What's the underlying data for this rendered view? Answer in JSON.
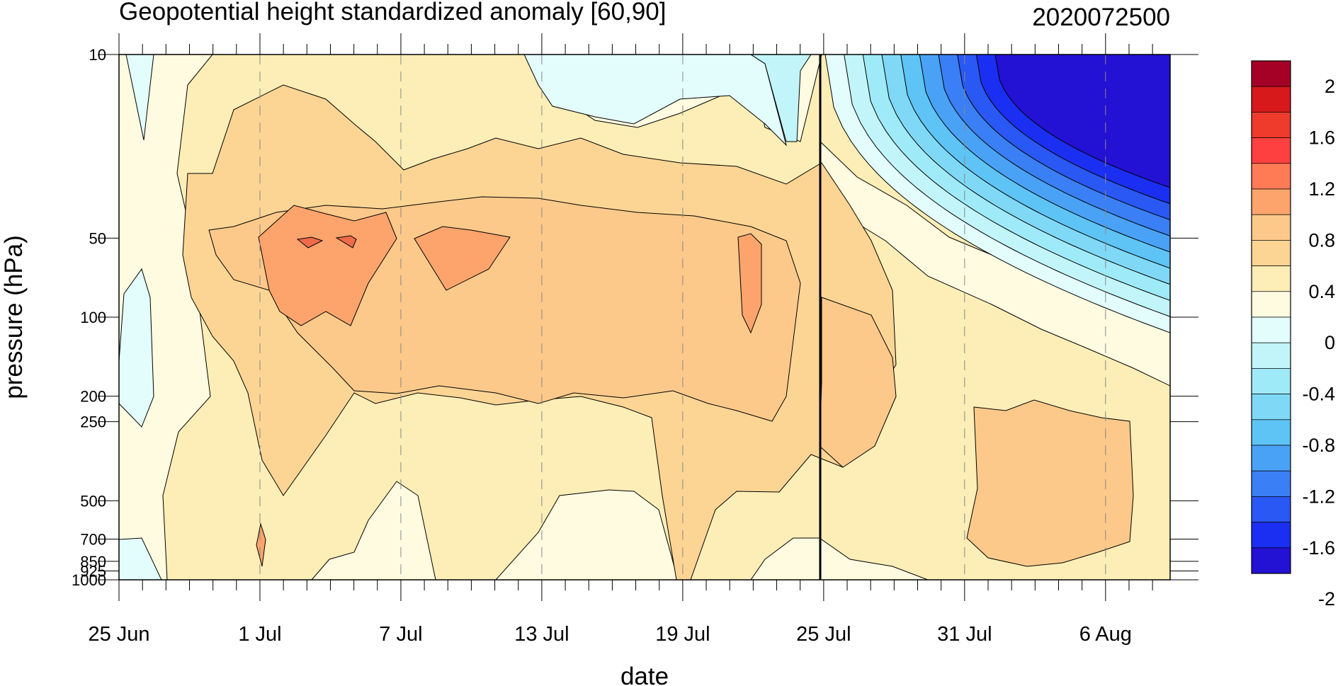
{
  "chart_data": {
    "type": "heatmap",
    "title": "Geopotential height standardized anomaly [60,90]",
    "date_stamp": "2020072500",
    "xlabel": "date",
    "ylabel": "pressure (hPa)",
    "x_ticks": [
      "25 Jun",
      "1 Jul",
      "7 Jul",
      "13 Jul",
      "19 Jul",
      "25 Jul",
      "31 Jul",
      "6 Aug"
    ],
    "x_range_days": [
      0,
      45
    ],
    "current_day_marker": "25 Jul",
    "y_ticks": [
      "10",
      "50",
      "100",
      "200",
      "250",
      "500",
      "700",
      "850",
      "925",
      "1000"
    ],
    "y_scale": "log",
    "y_range": [
      1000,
      10
    ],
    "colorbar": {
      "labels": [
        "2",
        "1.6",
        "1.2",
        "0.8",
        "0.4",
        "0",
        "-0.4",
        "-0.8",
        "-1.2",
        "-1.6",
        "-2"
      ],
      "colors": [
        "#a50026",
        "#d7191c",
        "#ef3b2c",
        "#ff4040",
        "#ff7b56",
        "#fda46d",
        "#fcc98a",
        "#fcd595",
        "#fceeb6",
        "#fffbe1",
        "#e3fdfd",
        "#c2f5f9",
        "#9feaf8",
        "#7fd9f6",
        "#5ec3f5",
        "#4aa2f6",
        "#3a7ff5",
        "#2a58f5",
        "#1b2ff2",
        "#2311d4"
      ]
    },
    "levels": [
      {
        "name": "strong-neg",
        "value": -2.0,
        "color": "#2311d4"
      },
      {
        "name": "neg-1.8",
        "value": -1.8,
        "color": "#1b2ff2"
      },
      {
        "name": "neg-1.6",
        "value": -1.6,
        "color": "#2a58f5"
      },
      {
        "name": "neg-1.4",
        "value": -1.4,
        "color": "#3a7ff5"
      },
      {
        "name": "neg-1.2",
        "value": -1.2,
        "color": "#4aa2f6"
      },
      {
        "name": "neg-1.0",
        "value": -1.0,
        "color": "#5ec3f5"
      },
      {
        "name": "neg-0.8",
        "value": -0.8,
        "color": "#7fd9f6"
      },
      {
        "name": "neg-0.6",
        "value": -0.6,
        "color": "#9feaf8"
      },
      {
        "name": "neg-0.4",
        "value": -0.4,
        "color": "#c2f5f9"
      },
      {
        "name": "neg-0.2",
        "value": -0.2,
        "color": "#e3fdfd"
      },
      {
        "name": "pos-0.0",
        "value": 0.0,
        "color": "#fffbe1"
      },
      {
        "name": "pos-0.2",
        "value": 0.2,
        "color": "#fceeb6"
      },
      {
        "name": "pos-0.6",
        "value": 0.6,
        "color": "#fcd595"
      },
      {
        "name": "pos-1.0",
        "value": 1.0,
        "color": "#fda46d"
      },
      {
        "name": "pos-1.4",
        "value": 1.4,
        "color": "#ef6b4a"
      }
    ]
  }
}
